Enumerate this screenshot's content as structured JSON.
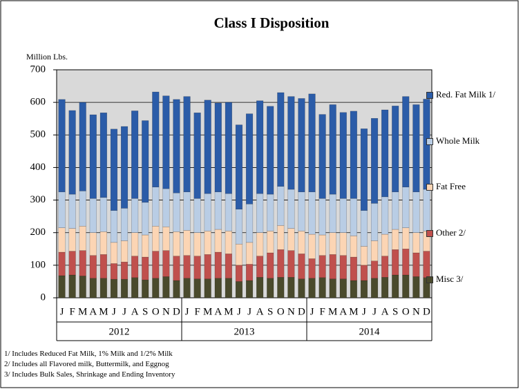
{
  "chart_data": {
    "type": "stacked_bar",
    "title": "Class I Disposition",
    "y_label": "Million Lbs.",
    "categories": [
      "J",
      "F",
      "M",
      "A",
      "M",
      "J",
      "J",
      "A",
      "S",
      "O",
      "N",
      "D",
      "J",
      "F",
      "M",
      "A",
      "M",
      "J",
      "J",
      "A",
      "S",
      "O",
      "N",
      "D",
      "J",
      "F",
      "M",
      "A",
      "M",
      "J",
      "J",
      "A",
      "S",
      "O",
      "N",
      "D"
    ],
    "year_groups": [
      "2012",
      "2013",
      "2014"
    ],
    "ylim": [
      0,
      700
    ],
    "yticks": [
      0,
      100,
      200,
      300,
      400,
      500,
      600,
      700
    ],
    "grid": true,
    "legend": "right",
    "series": [
      {
        "name": "Misc 3/",
        "color": "#4a4a2c",
        "values": [
          68,
          70,
          67,
          60,
          60,
          57,
          57,
          62,
          55,
          60,
          65,
          53,
          60,
          58,
          58,
          60,
          60,
          50,
          53,
          63,
          60,
          63,
          63,
          58,
          60,
          62,
          58,
          58,
          53,
          53,
          60,
          63,
          70,
          70,
          65,
          62
        ]
      },
      {
        "name": "Other 2/",
        "color": "#c0504d",
        "values": [
          72,
          73,
          78,
          70,
          73,
          48,
          53,
          66,
          70,
          83,
          80,
          75,
          70,
          70,
          75,
          80,
          75,
          50,
          50,
          65,
          78,
          85,
          82,
          77,
          60,
          68,
          75,
          72,
          72,
          47,
          53,
          65,
          78,
          80,
          73,
          81
        ]
      },
      {
        "name": "Fat Free",
        "color": "#fcd5b4",
        "values": [
          75,
          70,
          75,
          70,
          70,
          65,
          65,
          72,
          68,
          77,
          73,
          75,
          77,
          72,
          72,
          70,
          70,
          65,
          67,
          72,
          67,
          74,
          68,
          70,
          75,
          63,
          67,
          70,
          65,
          58,
          62,
          67,
          62,
          65,
          62,
          62
        ]
      },
      {
        "name": "Whole Milk",
        "color": "#b9cde5",
        "values": [
          110,
          105,
          108,
          105,
          105,
          98,
          100,
          105,
          100,
          120,
          117,
          119,
          118,
          105,
          115,
          115,
          115,
          107,
          118,
          120,
          113,
          120,
          120,
          120,
          130,
          112,
          118,
          105,
          115,
          110,
          115,
          115,
          115,
          125,
          125,
          128
        ]
      },
      {
        "name": "Red. Fat Milk 1/",
        "color": "#2b5ca8",
        "values": [
          284,
          257,
          272,
          257,
          260,
          250,
          251,
          269,
          251,
          292,
          285,
          287,
          293,
          263,
          287,
          273,
          280,
          259,
          277,
          285,
          270,
          288,
          285,
          287,
          301,
          258,
          275,
          264,
          268,
          251,
          261,
          267,
          264,
          278,
          268,
          277
        ]
      }
    ],
    "footnotes": [
      "1/  Includes Reduced Fat Milk, 1% Milk and 1/2% Milk",
      "2/  Includes all Flavored milk, Buttermilk, and Eggnog",
      "3/  Includes  Bulk Sales, Shrinkage and Ending Inventory"
    ]
  }
}
